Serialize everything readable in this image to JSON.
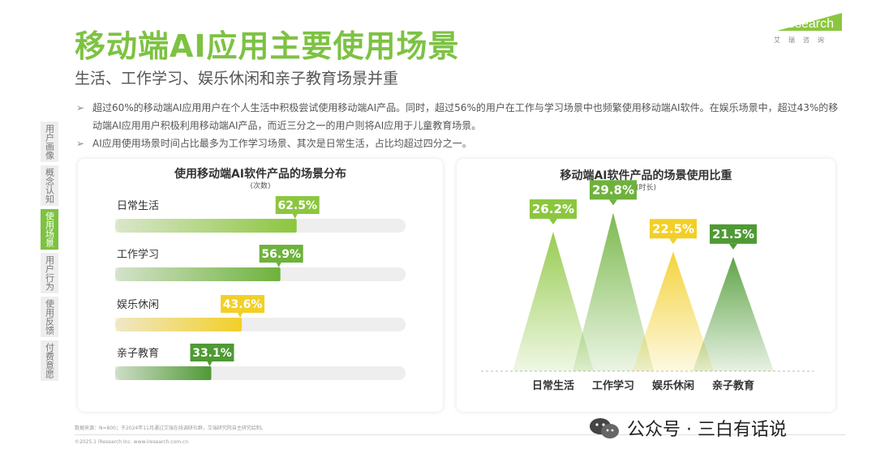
{
  "header": {
    "title": "移动端AI应用主要使用场景",
    "subtitle": "生活、工作学习、娱乐休闲和亲子教育场景并重",
    "logo_word": "iResearch",
    "logo_sub": "艾瑞咨询"
  },
  "sidenav": {
    "items": [
      {
        "label": "用户画像",
        "active": false
      },
      {
        "label": "概念认知",
        "active": false
      },
      {
        "label": "使用场景",
        "active": true
      },
      {
        "label": "用户行为",
        "active": false
      },
      {
        "label": "使用反馈",
        "active": false
      },
      {
        "label": "付费意愿",
        "active": false
      }
    ]
  },
  "bullets": [
    "超过60%的移动端AI应用用户在个人生活中积极尝试使用移动端AI产品。同时，超过56%的用户在工作与学习场景中也频繁使用移动端AI软件。在娱乐场景中，超过43%的移动端AI应用用户积极利用移动端AI产品，而近三分之一的用户则将AI应用于儿童教育场景。",
    "AI应用使用场景时间占比最多为工作学习场景、其次是日常生活，占比均超过四分之一。"
  ],
  "colors": {
    "brand_green": "#7dc242",
    "dark_green": "#5a9e32",
    "yellow": "#f2cf28",
    "track": "#eeeeee"
  },
  "chart_data": [
    {
      "type": "bar",
      "title": "使用移动端AI软件产品的场景分布",
      "note": "(次数)",
      "categories": [
        "日常生活",
        "工作学习",
        "娱乐休闲",
        "亲子教育"
      ],
      "values": [
        62.5,
        56.9,
        43.6,
        33.1
      ],
      "labels": [
        "62.5%",
        "56.9%",
        "43.6%",
        "33.1%"
      ],
      "xlim": [
        0,
        100
      ],
      "colors": [
        "#8cc63f",
        "#6eb23c",
        "#f2cf28",
        "#4f9a34"
      ]
    },
    {
      "type": "bar",
      "title": "移动端AI软件产品的场景使用比重",
      "note": "(时长)",
      "categories": [
        "日常生活",
        "工作学习",
        "娱乐休闲",
        "亲子教育"
      ],
      "values": [
        26.2,
        29.8,
        22.5,
        21.5
      ],
      "labels": [
        "26.2%",
        "29.8%",
        "22.5%",
        "21.5%"
      ],
      "ylim": [
        0,
        30
      ],
      "colors": [
        "#8cc63f",
        "#6eb23c",
        "#f2cf28",
        "#4f9a34"
      ]
    }
  ],
  "footer": {
    "source": "数据来源：N=800；于2024年11月通过艾瑞在线调研社群，艾瑞研究院自主研究绘制。",
    "copyright": "©2025.1 iResearch Inc.                www.iresearch.com.cn",
    "watermark": "公众号 · 三白有话说"
  }
}
